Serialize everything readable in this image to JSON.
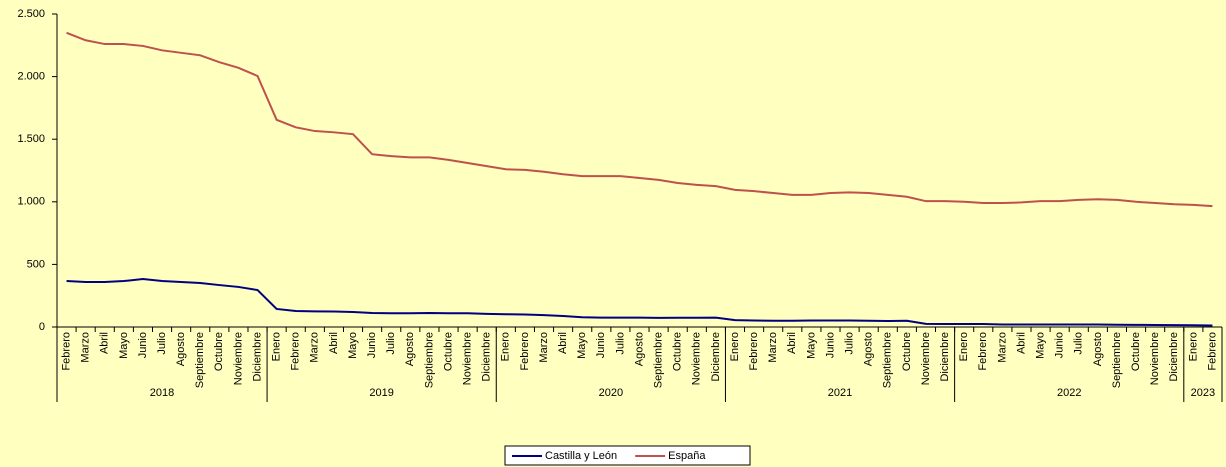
{
  "chart_data": {
    "type": "line",
    "categories": [
      "Febrero",
      "Marzo",
      "Abril",
      "Mayo",
      "Junio",
      "Julio",
      "Agosto",
      "Septiembre",
      "Octubre",
      "Noviembre",
      "Diciembre",
      "Enero",
      "Febrero",
      "Marzo",
      "Abril",
      "Mayo",
      "Junio",
      "Julio",
      "Agosto",
      "Septiembre",
      "Octubre",
      "Noviembre",
      "Diciembre",
      "Enero",
      "Febrero",
      "Marzo",
      "Abril",
      "Mayo",
      "Junio",
      "Julio",
      "Agosto",
      "Septiembre",
      "Octubre",
      "Noviembre",
      "Diciembre",
      "Enero",
      "Febrero",
      "Marzo",
      "Abril",
      "Mayo",
      "Junio",
      "Julio",
      "Agosto",
      "Septiembre",
      "Octubre",
      "Noviembre",
      "Diciembre",
      "Enero",
      "Febrero",
      "Marzo",
      "Abril",
      "Mayo",
      "Junio",
      "Julio",
      "Agosto",
      "Septiembre",
      "Octubre",
      "Noviembre",
      "Diciembre",
      "Enero",
      "Febrero"
    ],
    "years": [
      "2018",
      "2018",
      "2018",
      "2018",
      "2018",
      "2018",
      "2018",
      "2018",
      "2018",
      "2018",
      "2018",
      "2019",
      "2019",
      "2019",
      "2019",
      "2019",
      "2019",
      "2019",
      "2019",
      "2019",
      "2019",
      "2019",
      "2019",
      "2020",
      "2020",
      "2020",
      "2020",
      "2020",
      "2020",
      "2020",
      "2020",
      "2020",
      "2020",
      "2020",
      "2020",
      "2021",
      "2021",
      "2021",
      "2021",
      "2021",
      "2021",
      "2021",
      "2021",
      "2021",
      "2021",
      "2021",
      "2021",
      "2022",
      "2022",
      "2022",
      "2022",
      "2022",
      "2022",
      "2022",
      "2022",
      "2022",
      "2022",
      "2022",
      "2022",
      "2023",
      "2023"
    ],
    "series": [
      {
        "name": "Castilla y León",
        "color": "#000080",
        "values": [
          367,
          359,
          359,
          367,
          383,
          367,
          359,
          351,
          335,
          320,
          295,
          144,
          128,
          125,
          124,
          120,
          112,
          110,
          110,
          112,
          110,
          110,
          105,
          102,
          100,
          95,
          88,
          78,
          75,
          75,
          75,
          73,
          74,
          74,
          75,
          55,
          52,
          50,
          50,
          52,
          52,
          52,
          50,
          48,
          50,
          25,
          24,
          24,
          24,
          20,
          20,
          20,
          20,
          20,
          20,
          18,
          17,
          16,
          15,
          14,
          12
        ]
      },
      {
        "name": "España",
        "color": "#c0504d",
        "values": [
          2350,
          2290,
          2260,
          2260,
          2245,
          2210,
          2190,
          2170,
          2115,
          2070,
          2005,
          1655,
          1595,
          1565,
          1555,
          1540,
          1380,
          1365,
          1355,
          1355,
          1335,
          1310,
          1285,
          1260,
          1255,
          1240,
          1220,
          1205,
          1205,
          1205,
          1190,
          1175,
          1150,
          1135,
          1125,
          1095,
          1085,
          1070,
          1055,
          1055,
          1070,
          1075,
          1070,
          1055,
          1040,
          1005,
          1005,
          1000,
          990,
          990,
          995,
          1005,
          1005,
          1015,
          1020,
          1015,
          1000,
          990,
          980,
          975,
          965
        ]
      }
    ],
    "ylim": [
      0,
      2500
    ],
    "yticks": [
      0,
      500,
      {
        "value": 1000,
        "label": "1.000"
      },
      {
        "value": 1500,
        "label": "1.500"
      },
      {
        "value": 2000,
        "label": "2.000"
      },
      {
        "value": 2500,
        "label": "2.500"
      }
    ],
    "legend": "bottom"
  }
}
